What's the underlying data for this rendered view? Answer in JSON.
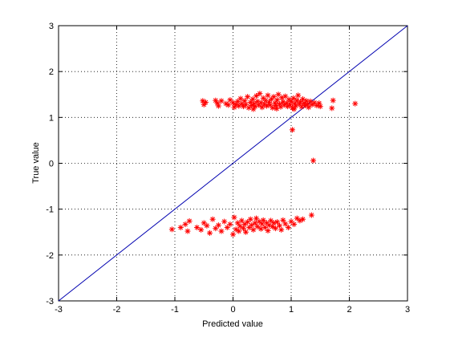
{
  "chart_data": {
    "type": "scatter",
    "title": "",
    "xlabel": "Predicted value",
    "ylabel": "True value",
    "xlim": [
      -3,
      3
    ],
    "ylim": [
      -3,
      3
    ],
    "xticks": [
      -3,
      -2,
      -1,
      0,
      1,
      2,
      3
    ],
    "yticks": [
      -3,
      -2,
      -1,
      0,
      1,
      2,
      3
    ],
    "grid": true,
    "grid_style": "dotted",
    "reference_line": {
      "x": [
        -3,
        3
      ],
      "y": [
        -3,
        3
      ],
      "color": "#0000b0"
    },
    "marker": "*",
    "marker_color": "#ff0000",
    "series": [
      {
        "points": [
          [
            -0.52,
            1.36
          ],
          [
            -0.5,
            1.28
          ],
          [
            -0.47,
            1.33
          ],
          [
            -0.3,
            1.37
          ],
          [
            -0.27,
            1.31
          ],
          [
            -0.25,
            1.25
          ],
          [
            -0.2,
            1.36
          ],
          [
            -0.12,
            1.3
          ],
          [
            -0.08,
            1.27
          ],
          [
            -0.05,
            1.38
          ],
          [
            0.0,
            1.32
          ],
          [
            0.02,
            1.22
          ],
          [
            0.05,
            1.28
          ],
          [
            0.08,
            1.35
          ],
          [
            0.1,
            1.25
          ],
          [
            0.13,
            1.41
          ],
          [
            0.15,
            1.3
          ],
          [
            0.18,
            1.24
          ],
          [
            0.2,
            1.36
          ],
          [
            0.22,
            1.28
          ],
          [
            0.25,
            1.45
          ],
          [
            0.27,
            1.21
          ],
          [
            0.3,
            1.33
          ],
          [
            0.32,
            1.26
          ],
          [
            0.34,
            1.4
          ],
          [
            0.36,
            1.3
          ],
          [
            0.38,
            1.24
          ],
          [
            0.4,
            1.47
          ],
          [
            0.42,
            1.35
          ],
          [
            0.44,
            1.27
          ],
          [
            0.46,
            1.52
          ],
          [
            0.48,
            1.32
          ],
          [
            0.5,
            1.22
          ],
          [
            0.52,
            1.42
          ],
          [
            0.54,
            1.29
          ],
          [
            0.56,
            1.37
          ],
          [
            0.58,
            1.25
          ],
          [
            0.6,
            1.48
          ],
          [
            0.62,
            1.33
          ],
          [
            0.64,
            1.27
          ],
          [
            0.66,
            1.4
          ],
          [
            0.68,
            1.21
          ],
          [
            0.7,
            1.45
          ],
          [
            0.72,
            1.31
          ],
          [
            0.74,
            1.26
          ],
          [
            0.76,
            1.38
          ],
          [
            0.78,
            1.5
          ],
          [
            0.8,
            1.29
          ],
          [
            0.82,
            1.23
          ],
          [
            0.84,
            1.43
          ],
          [
            0.86,
            1.34
          ],
          [
            0.88,
            1.27
          ],
          [
            0.9,
            1.46
          ],
          [
            0.92,
            1.31
          ],
          [
            0.94,
            1.24
          ],
          [
            0.96,
            1.39
          ],
          [
            0.98,
            1.28
          ],
          [
            1.0,
            1.35
          ],
          [
            1.02,
            1.21
          ],
          [
            1.04,
            1.42
          ],
          [
            1.06,
            1.3
          ],
          [
            1.08,
            1.25
          ],
          [
            1.1,
            1.37
          ],
          [
            1.12,
            1.48
          ],
          [
            1.14,
            1.29
          ],
          [
            1.16,
            1.34
          ],
          [
            1.18,
            1.23
          ],
          [
            1.2,
            1.4
          ],
          [
            1.22,
            1.31
          ],
          [
            1.24,
            1.26
          ],
          [
            1.26,
            1.36
          ],
          [
            1.28,
            1.29
          ],
          [
            1.3,
            1.22
          ],
          [
            1.33,
            1.35
          ],
          [
            1.36,
            1.28
          ],
          [
            1.4,
            1.32
          ],
          [
            1.44,
            1.26
          ],
          [
            1.48,
            1.31
          ],
          [
            1.5,
            1.24
          ],
          [
            1.05,
            1.18
          ],
          [
            0.35,
            1.18
          ],
          [
            0.75,
            1.19
          ],
          [
            1.7,
            1.2
          ],
          [
            1.72,
            1.37
          ],
          [
            2.1,
            1.3
          ],
          [
            1.02,
            0.73
          ],
          [
            1.38,
            0.06
          ]
        ]
      },
      {
        "points": [
          [
            -1.05,
            -1.44
          ],
          [
            -0.9,
            -1.4
          ],
          [
            -0.82,
            -1.33
          ],
          [
            -0.78,
            -1.48
          ],
          [
            -0.75,
            -1.26
          ],
          [
            -0.62,
            -1.4
          ],
          [
            -0.55,
            -1.45
          ],
          [
            -0.5,
            -1.3
          ],
          [
            -0.45,
            -1.36
          ],
          [
            -0.4,
            -1.52
          ],
          [
            -0.35,
            -1.22
          ],
          [
            -0.3,
            -1.42
          ],
          [
            -0.25,
            -1.35
          ],
          [
            -0.2,
            -1.48
          ],
          [
            -0.15,
            -1.27
          ],
          [
            -0.1,
            -1.4
          ],
          [
            -0.05,
            -1.33
          ],
          [
            0.0,
            -1.55
          ],
          [
            0.02,
            -1.18
          ],
          [
            0.05,
            -1.44
          ],
          [
            0.08,
            -1.3
          ],
          [
            0.1,
            -1.48
          ],
          [
            0.12,
            -1.37
          ],
          [
            0.15,
            -1.25
          ],
          [
            0.18,
            -1.42
          ],
          [
            0.2,
            -1.33
          ],
          [
            0.22,
            -1.5
          ],
          [
            0.25,
            -1.28
          ],
          [
            0.28,
            -1.4
          ],
          [
            0.3,
            -1.22
          ],
          [
            0.32,
            -1.35
          ],
          [
            0.35,
            -1.45
          ],
          [
            0.38,
            -1.3
          ],
          [
            0.4,
            -1.2
          ],
          [
            0.42,
            -1.38
          ],
          [
            0.45,
            -1.27
          ],
          [
            0.48,
            -1.43
          ],
          [
            0.5,
            -1.32
          ],
          [
            0.52,
            -1.24
          ],
          [
            0.55,
            -1.4
          ],
          [
            0.58,
            -1.3
          ],
          [
            0.6,
            -1.47
          ],
          [
            0.62,
            -1.35
          ],
          [
            0.65,
            -1.25
          ],
          [
            0.68,
            -1.38
          ],
          [
            0.7,
            -1.3
          ],
          [
            0.73,
            -1.42
          ],
          [
            0.76,
            -1.28
          ],
          [
            0.8,
            -1.36
          ],
          [
            0.83,
            -1.45
          ],
          [
            0.86,
            -1.24
          ],
          [
            0.9,
            -1.32
          ],
          [
            0.95,
            -1.4
          ],
          [
            1.0,
            -1.27
          ],
          [
            1.05,
            -1.33
          ],
          [
            1.1,
            -1.2
          ],
          [
            1.15,
            -1.25
          ],
          [
            1.2,
            -1.22
          ],
          [
            1.35,
            -1.13
          ]
        ]
      }
    ]
  }
}
